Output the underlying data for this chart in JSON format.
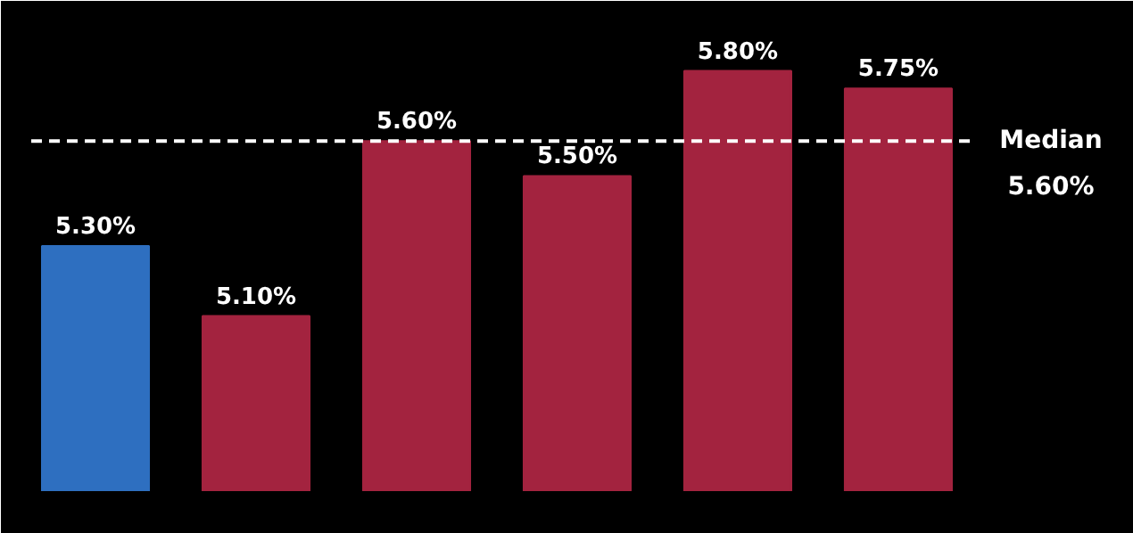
{
  "chart_data": {
    "type": "bar",
    "categories": [
      null,
      null,
      null,
      null,
      null,
      null
    ],
    "values": [
      5.3,
      5.1,
      5.6,
      5.5,
      5.8,
      5.75
    ],
    "value_labels": [
      "5.30%",
      "5.10%",
      "5.60%",
      "5.50%",
      "5.80%",
      "5.75%"
    ],
    "colors": [
      "#2e6fc0",
      "#a3233f",
      "#a3233f",
      "#a3233f",
      "#a3233f",
      "#a3233f"
    ],
    "ylim": [
      4.6,
      6.0
    ],
    "tick_labels": false,
    "grid": false,
    "ref_lines": [
      {
        "axis": "y",
        "value": 5.6,
        "label": "Median 5.60%",
        "color": "#ffffff",
        "line_style": "dashed"
      }
    ]
  }
}
